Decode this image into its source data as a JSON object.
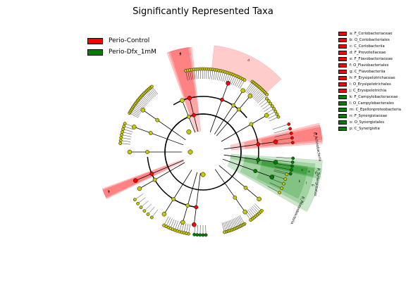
{
  "title": "Significantly Represented Taxa",
  "classes": [
    {
      "name": "Perio-Control",
      "color": "#ff0000"
    },
    {
      "name": "Perio-Dfx_1mM",
      "color": "#008000"
    }
  ],
  "taxa": [
    {
      "id": "a",
      "name": "F_Coriobacteriaceae",
      "class": 0,
      "label": "a: F_Coriobacteriaceae"
    },
    {
      "id": "b",
      "name": "O_Coriobacteriales",
      "class": 0,
      "label": "b: O_Coriobacteriales"
    },
    {
      "id": "c",
      "name": "C_Coriobacteriia",
      "class": 0,
      "label": "c: C_Coriobacteriia"
    },
    {
      "id": "d",
      "name": "F_Prevotellaceae",
      "class": 0,
      "label": "d: F_Prevotellaceae"
    },
    {
      "id": "e",
      "name": "F_Flavobacteriaceae",
      "class": 0,
      "label": "e: F_Flavobacteriaceae"
    },
    {
      "id": "f",
      "name": "O_Flavobacteriales",
      "class": 0,
      "label": "f: O_Flavobacteriales"
    },
    {
      "id": "g",
      "name": "C_Flavobacteriia",
      "class": 0,
      "label": "g: C_Flavobacteriia"
    },
    {
      "id": "h",
      "name": "F_Erysipelotrichaceae",
      "class": 0,
      "label": "h: F_Erysipelotrichaceae"
    },
    {
      "id": "i",
      "name": "O_Erysipelotrichales",
      "class": 0,
      "label": "i: O_Erysipelotrichales"
    },
    {
      "id": "j",
      "name": "C_Erysipelotrichia",
      "class": 0,
      "label": "j: C_Erysipelotrichia"
    },
    {
      "id": "k",
      "name": "F_Campylobacteraceae",
      "class": 1,
      "label": "k: F_Campylobacteraceae"
    },
    {
      "id": "l",
      "name": "O_Campylobacterales",
      "class": 1,
      "label": "l: O_Campylobacterales"
    },
    {
      "id": "m",
      "name": "C_Epsilonproteobacteria",
      "class": 1,
      "label": "m: C_Epsilonproteobacteria"
    },
    {
      "id": "n",
      "name": "F_Synergistaceae",
      "class": 1,
      "label": "n: F_Synergistaceae"
    },
    {
      "id": "o",
      "name": "O_Synergistales",
      "class": 1,
      "label": "o: O_Synergistales"
    },
    {
      "id": "p",
      "name": "C_Synergistia",
      "class": 1,
      "label": "p: C_Synergistia"
    }
  ],
  "phylum_labels": {
    "actinobacteria": "p_Actinobacteria",
    "synergistetes": "p_Synergistetes",
    "proteobacteria": "p_Proteobacteria"
  }
}
